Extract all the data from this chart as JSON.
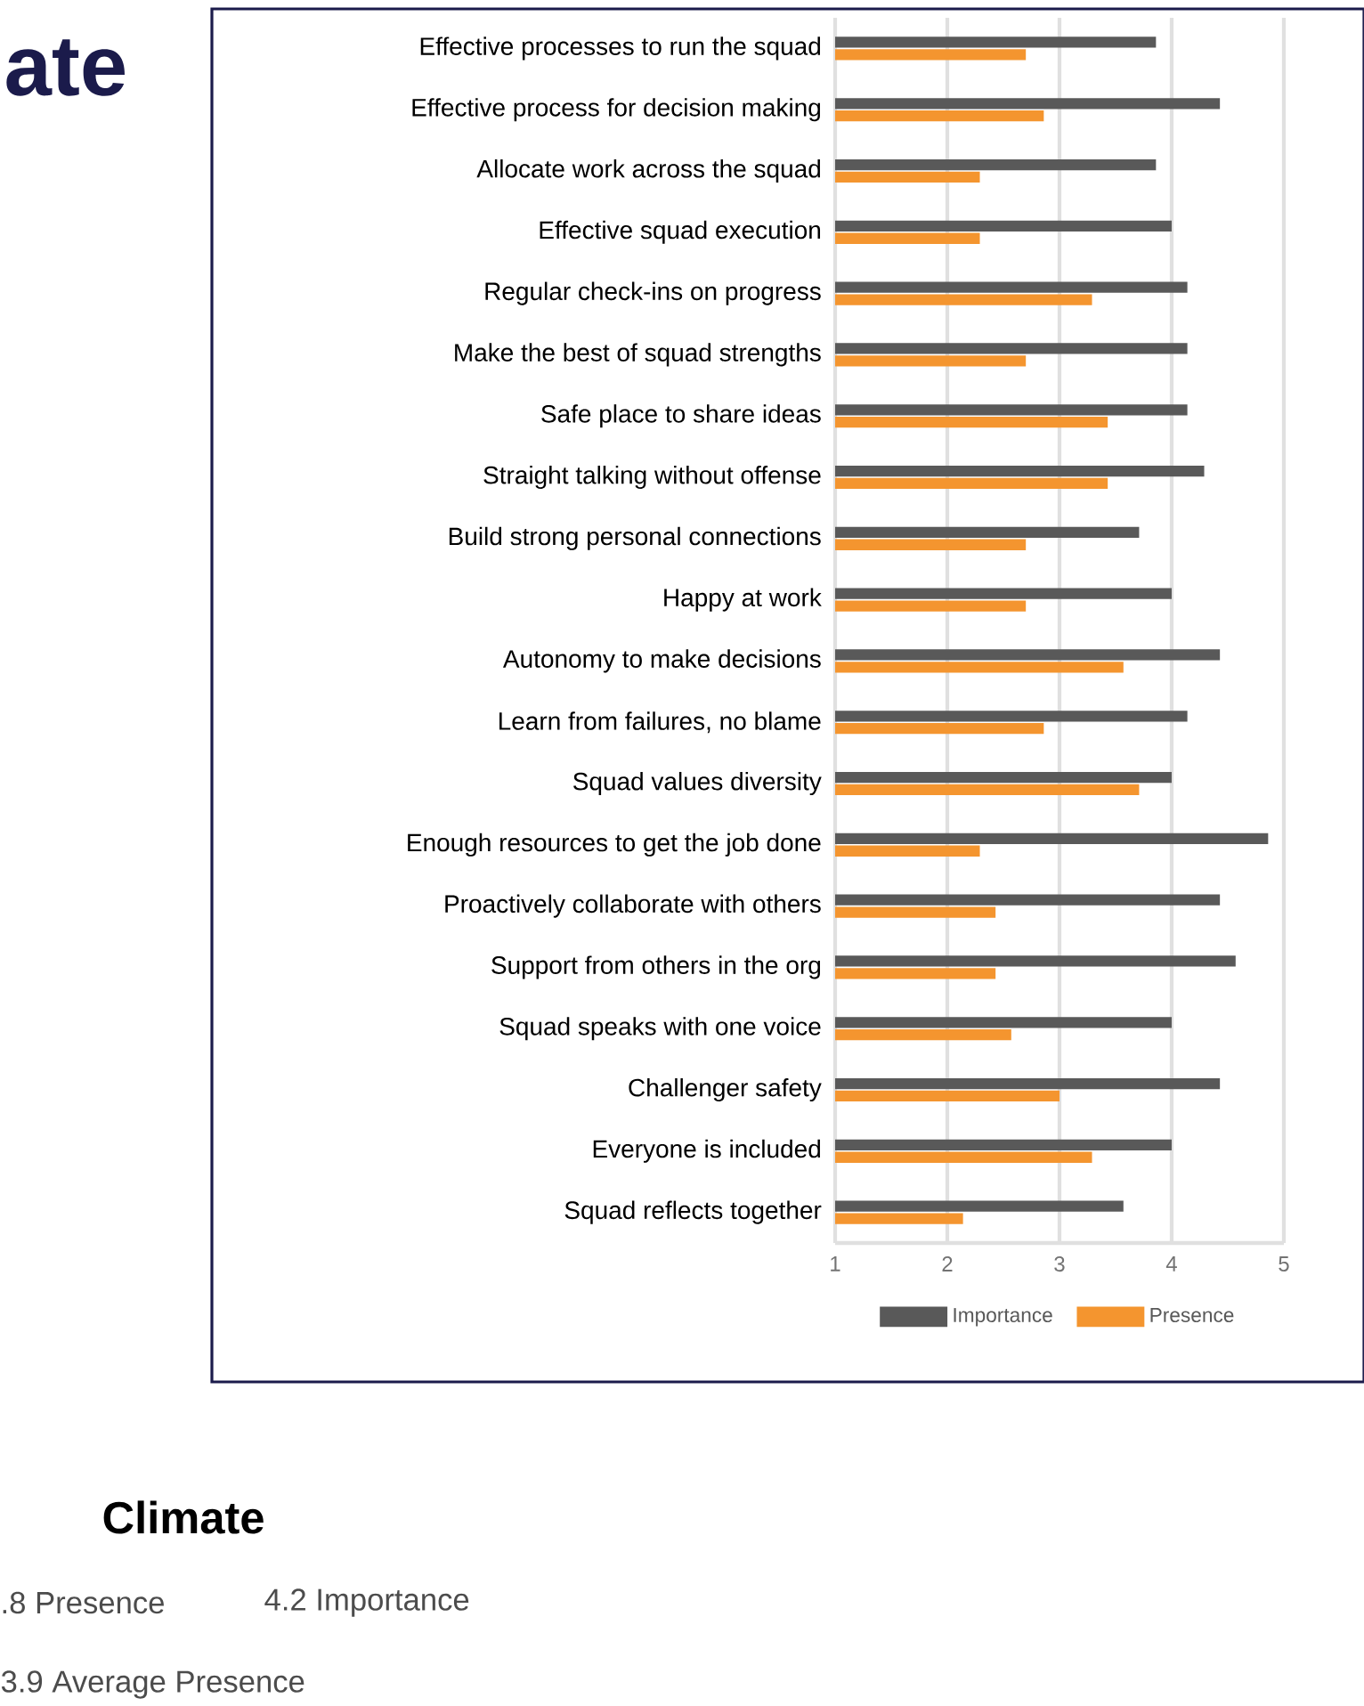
{
  "chart_data": {
    "type": "bar",
    "orientation": "horizontal",
    "categories": [
      "Effective processes to run the squad",
      "Effective process for decision making",
      "Allocate work across the squad",
      "Effective squad execution",
      "Regular check-ins on progress",
      "Make the best of squad strengths",
      "Safe place to share ideas",
      "Straight talking without offense",
      "Build strong personal connections",
      "Happy at work",
      "Autonomy to make decisions",
      "Learn from failures, no blame",
      "Squad values diversity",
      "Enough resources to get the job done",
      "Proactively collaborate with others",
      "Support from others in the org",
      "Squad speaks with one voice",
      "Challenger safety",
      "Everyone is included",
      "Squad reflects together"
    ],
    "series": [
      {
        "name": "Importance",
        "color": "#595959",
        "values": [
          3.86,
          4.43,
          3.86,
          4.0,
          4.14,
          4.14,
          4.14,
          4.29,
          3.71,
          4.0,
          4.43,
          4.14,
          4.0,
          4.86,
          4.43,
          4.57,
          4.0,
          4.43,
          4.0,
          3.57
        ]
      },
      {
        "name": "Presence",
        "color": "#f4952f",
        "values": [
          2.7,
          2.86,
          2.29,
          2.29,
          3.29,
          2.7,
          3.43,
          3.43,
          2.7,
          2.7,
          3.57,
          2.86,
          3.71,
          2.29,
          2.43,
          2.43,
          2.57,
          3.0,
          3.29,
          2.14
        ]
      }
    ],
    "xlim": [
      1,
      5
    ],
    "xticks": [
      1,
      2,
      3,
      4,
      5
    ],
    "grid": "x",
    "legend": "bottom",
    "annotations": [
      "ate",
      "Climate",
      ".8 Presence",
      "4.2 Importance",
      "3.9 Average Presence"
    ]
  }
}
